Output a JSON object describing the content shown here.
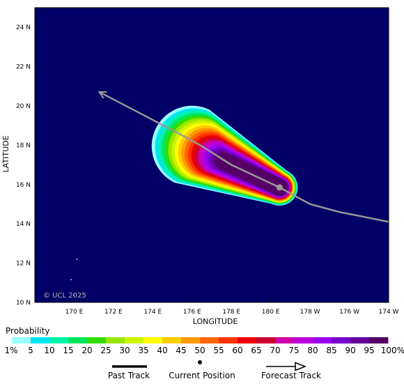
{
  "map": {
    "xlabel": "LONGITUDE",
    "ylabel": "LATITUDE",
    "background_color": "#000066",
    "copyright": "© UCL 2025",
    "lon_ticks": [
      {
        "label": "170 E",
        "lon": 170
      },
      {
        "label": "172 E",
        "lon": 172
      },
      {
        "label": "174 E",
        "lon": 174
      },
      {
        "label": "176 E",
        "lon": 176
      },
      {
        "label": "178 E",
        "lon": 178
      },
      {
        "label": "180 E",
        "lon": 180
      },
      {
        "label": "178 W",
        "lon": 182
      },
      {
        "label": "176 W",
        "lon": 184
      },
      {
        "label": "174 W",
        "lon": 186
      }
    ],
    "lat_ticks": [
      {
        "label": "10 N",
        "lat": 10
      },
      {
        "label": "12 N",
        "lat": 12
      },
      {
        "label": "14 N",
        "lat": 14
      },
      {
        "label": "16 N",
        "lat": 16
      },
      {
        "label": "18 N",
        "lat": 18
      },
      {
        "label": "20 N",
        "lat": 20
      },
      {
        "label": "22 N",
        "lat": 22
      },
      {
        "label": "24 N",
        "lat": 24
      }
    ],
    "lon_range": [
      168.0,
      186.0
    ],
    "lat_range": [
      10.0,
      25.0
    ],
    "current_position": {
      "lon": 180.45,
      "lat": 15.85,
      "color": "#999999"
    },
    "forecast_track": {
      "color": "#999999",
      "points": [
        [
          186.0,
          14.1
        ],
        [
          185.0,
          14.3
        ],
        [
          183.5,
          14.6
        ],
        [
          182.0,
          15.0
        ],
        [
          180.45,
          15.85
        ],
        [
          178.0,
          17.0
        ],
        [
          176.5,
          17.95
        ],
        [
          175.5,
          18.5
        ],
        [
          173.5,
          19.55
        ],
        [
          171.3,
          20.7
        ]
      ]
    },
    "probability_swath": {
      "center_start": [
        176.0,
        17.95
      ],
      "center_end": [
        180.45,
        15.85
      ],
      "colors": [
        "#99ffff",
        "#00e6f2",
        "#00f2aa",
        "#00e65c",
        "#33dd00",
        "#99e600",
        "#ccf200",
        "#ffff00",
        "#ffcc00",
        "#ff9900",
        "#ff6600",
        "#ff3300",
        "#ee0000",
        "#cc0033",
        "#cc00aa",
        "#bb00dd",
        "#9900ee",
        "#7700cc",
        "#660099",
        "#550066"
      ]
    }
  },
  "legend": {
    "title": "Probability",
    "labels": [
      "1%",
      "5",
      "10",
      "15",
      "20",
      "25",
      "30",
      "35",
      "40",
      "45",
      "50",
      "55",
      "60",
      "65",
      "70",
      "75",
      "80",
      "85",
      "90",
      "95",
      "100%"
    ],
    "colors": [
      "#99ffff",
      "#00e6f2",
      "#00f2aa",
      "#00e65c",
      "#33dd00",
      "#99e600",
      "#ccf200",
      "#ffff00",
      "#ffcc00",
      "#ff9900",
      "#ff6600",
      "#ff3300",
      "#ee0000",
      "#cc0033",
      "#cc00aa",
      "#bb00dd",
      "#9900ee",
      "#7700cc",
      "#660099",
      "#550066"
    ]
  },
  "track_legend": {
    "past_track": "Past Track",
    "current_position": "Current Position",
    "forecast_track": "Forecast Track"
  }
}
